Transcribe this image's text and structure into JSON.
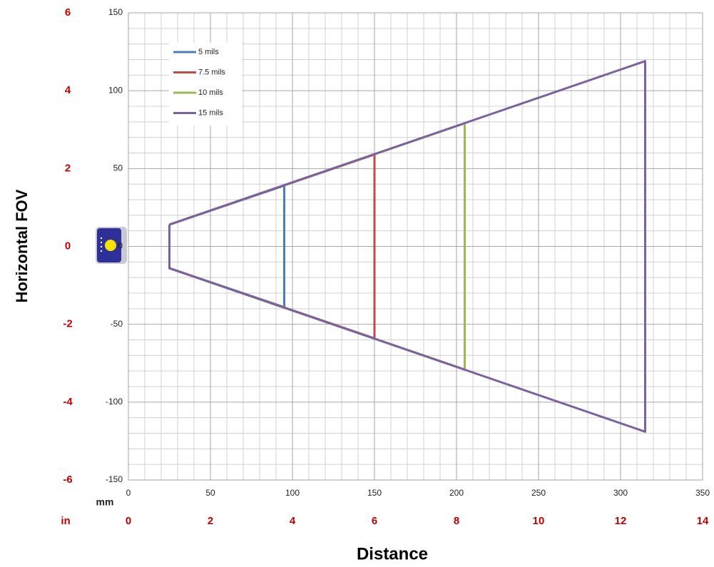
{
  "chart_data": {
    "type": "line",
    "x_label": "Distance",
    "y_label": "Horizontal FOV",
    "x_unit_label": "mm",
    "x2_unit_label": "in",
    "xlim": [
      0,
      350
    ],
    "xticks": [
      0,
      50,
      100,
      150,
      200,
      250,
      300,
      350
    ],
    "ylim": [
      -150,
      150
    ],
    "yticks": [
      -150,
      -100,
      -50,
      0,
      50,
      100,
      150
    ],
    "x2lim": [
      0,
      14
    ],
    "x2ticks": [
      0,
      2,
      4,
      6,
      8,
      10,
      12,
      14
    ],
    "y2lim": [
      -6,
      6
    ],
    "y2ticks": [
      -6,
      -4,
      -2,
      0,
      2,
      4,
      6
    ],
    "grid": true,
    "legend": "upper left",
    "series": [
      {
        "name": "5 mils",
        "color": "#4a7ebb",
        "x": [
          25,
          95,
          95,
          25
        ],
        "values": [
          14,
          39,
          -39,
          -14
        ]
      },
      {
        "name": "7.5 mils",
        "color": "#be4b48",
        "x": [
          25,
          150,
          150,
          25
        ],
        "values": [
          14,
          59,
          -59,
          -14
        ]
      },
      {
        "name": "10 mils",
        "color": "#98b954",
        "x": [
          25,
          205,
          205,
          25
        ],
        "values": [
          14,
          79,
          -79,
          -14
        ]
      },
      {
        "name": "15 mils",
        "color": "#7d60a0",
        "x": [
          25,
          315,
          315,
          25,
          25
        ],
        "values": [
          14,
          119,
          -119,
          -14,
          14
        ]
      }
    ]
  }
}
